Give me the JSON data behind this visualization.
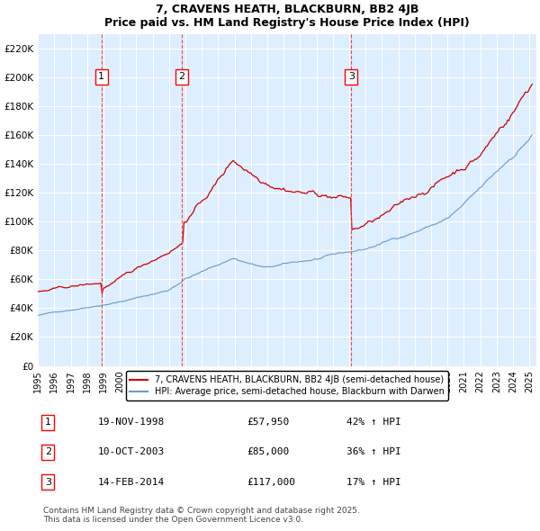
{
  "title": "7, CRAVENS HEATH, BLACKBURN, BB2 4JB",
  "subtitle": "Price paid vs. HM Land Registry's House Price Index (HPI)",
  "xlabel": "",
  "ylabel": "",
  "ylim": [
    0,
    230000
  ],
  "yticks": [
    0,
    20000,
    40000,
    60000,
    80000,
    100000,
    120000,
    140000,
    160000,
    180000,
    200000,
    220000
  ],
  "ytick_labels": [
    "£0",
    "£20K",
    "£40K",
    "£60K",
    "£80K",
    "£100K",
    "£120K",
    "£140K",
    "£160K",
    "£180K",
    "£200K",
    "£220K"
  ],
  "sale_dates": [
    "1998-11-19",
    "2003-10-10",
    "2014-02-14"
  ],
  "sale_prices": [
    57950,
    85000,
    117000
  ],
  "sale_labels": [
    "1",
    "2",
    "3"
  ],
  "sale_info": [
    {
      "label": "1",
      "date": "19-NOV-1998",
      "price": "£57,950",
      "change": "42% ↑ HPI"
    },
    {
      "label": "2",
      "date": "10-OCT-2003",
      "price": "£85,000",
      "change": "36% ↑ HPI"
    },
    {
      "label": "3",
      "date": "14-FEB-2014",
      "price": "£117,000",
      "change": "17% ↑ HPI"
    }
  ],
  "legend_line1": "7, CRAVENS HEATH, BLACKBURN, BB2 4JB (semi-detached house)",
  "legend_line2": "HPI: Average price, semi-detached house, Blackburn with Darwen",
  "footer": "Contains HM Land Registry data © Crown copyright and database right 2025.\nThis data is licensed under the Open Government Licence v3.0.",
  "line_color_red": "#cc0000",
  "line_color_blue": "#6699cc",
  "bg_color": "#ddeeff",
  "grid_color": "#ffffff",
  "vline_color": "#ff4444"
}
